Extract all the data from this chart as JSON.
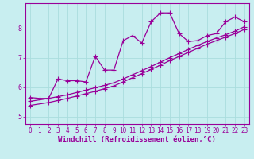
{
  "title": "",
  "xlabel": "Windchill (Refroidissement éolien,°C)",
  "ylabel": "",
  "bg_color": "#c8eef0",
  "line_color": "#990099",
  "grid_color": "#aadddd",
  "xlim": [
    -0.5,
    23.5
  ],
  "ylim": [
    4.75,
    8.85
  ],
  "xticks": [
    0,
    1,
    2,
    3,
    4,
    5,
    6,
    7,
    8,
    9,
    10,
    11,
    12,
    13,
    14,
    15,
    16,
    17,
    18,
    19,
    20,
    21,
    22,
    23
  ],
  "yticks": [
    5,
    6,
    7,
    8
  ],
  "line1_x": [
    0,
    1,
    2,
    3,
    4,
    5,
    6,
    7,
    8,
    9,
    10,
    11,
    12,
    13,
    14,
    15,
    16,
    17,
    18,
    19,
    20,
    21,
    22,
    23
  ],
  "line1_y": [
    5.65,
    5.62,
    5.62,
    6.28,
    6.22,
    6.22,
    6.18,
    7.05,
    6.58,
    6.58,
    7.58,
    7.75,
    7.5,
    8.22,
    8.52,
    8.52,
    7.82,
    7.55,
    7.58,
    7.75,
    7.82,
    8.22,
    8.38,
    8.22
  ],
  "line2_x": [
    0,
    2,
    3,
    4,
    5,
    6,
    7,
    8,
    9,
    10,
    11,
    12,
    13,
    14,
    15,
    16,
    17,
    18,
    19,
    20,
    21,
    22,
    23
  ],
  "line2_y": [
    5.52,
    5.62,
    5.68,
    5.74,
    5.82,
    5.9,
    5.98,
    6.06,
    6.15,
    6.28,
    6.42,
    6.56,
    6.7,
    6.85,
    7.0,
    7.14,
    7.28,
    7.42,
    7.55,
    7.67,
    7.78,
    7.9,
    8.05
  ],
  "line3_x": [
    0,
    2,
    3,
    4,
    5,
    6,
    7,
    8,
    9,
    10,
    11,
    12,
    13,
    14,
    15,
    16,
    17,
    18,
    19,
    20,
    21,
    22,
    23
  ],
  "line3_y": [
    5.38,
    5.48,
    5.55,
    5.62,
    5.7,
    5.78,
    5.86,
    5.95,
    6.04,
    6.18,
    6.32,
    6.46,
    6.6,
    6.75,
    6.9,
    7.04,
    7.18,
    7.32,
    7.46,
    7.58,
    7.7,
    7.82,
    7.96
  ],
  "marker": "+",
  "markersize": 4,
  "linewidth": 0.9,
  "tick_fontsize": 5.5,
  "label_fontsize": 6.5
}
